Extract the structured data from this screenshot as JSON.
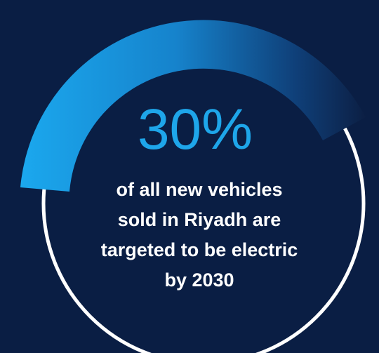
{
  "stat": {
    "value": "30%",
    "lines": [
      "of all new vehicles",
      "sold in Riyadh are",
      "targeted to be electric",
      "by 2030"
    ]
  }
}
